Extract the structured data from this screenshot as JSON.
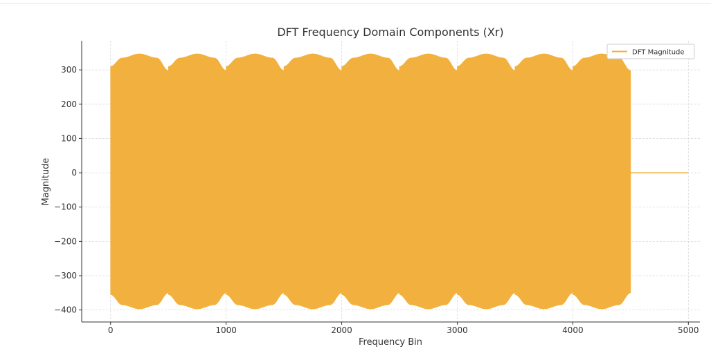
{
  "chart_data": {
    "type": "area",
    "title": "DFT Frequency Domain Components (Xr)",
    "xlabel": "Frequency Bin",
    "ylabel": "Magnitude",
    "xlim": [
      -250,
      5100
    ],
    "ylim": [
      -435,
      385
    ],
    "xticks": [
      0,
      1000,
      2000,
      3000,
      4000,
      5000
    ],
    "yticks": [
      300,
      200,
      100,
      0,
      -100,
      -200,
      -300,
      -400
    ],
    "ytick_labels": [
      "300",
      "200",
      "100",
      "0",
      "−100",
      "−200",
      "−300",
      "−400"
    ],
    "grid": true,
    "legend": {
      "position": "top-right",
      "entries": [
        "DFT Magnitude"
      ]
    },
    "series": [
      {
        "name": "DFT Magnitude",
        "color": "#f2b13e",
        "segment_length": 500,
        "segments": [
          {
            "start": 0,
            "end": 500
          },
          {
            "start": 500,
            "end": 1000
          },
          {
            "start": 1000,
            "end": 1500
          },
          {
            "start": 1500,
            "end": 2000
          },
          {
            "start": 2000,
            "end": 2500
          },
          {
            "start": 2500,
            "end": 3000
          },
          {
            "start": 3000,
            "end": 3500
          },
          {
            "start": 3500,
            "end": 4000
          },
          {
            "start": 4000,
            "end": 4500
          }
        ],
        "upper_envelope_x": [
          0,
          100,
          250,
          400,
          500
        ],
        "upper_envelope_y": [
          310,
          335,
          347,
          335,
          298
        ],
        "lower_envelope_x": [
          0,
          100,
          250,
          400,
          500
        ],
        "lower_envelope_y": [
          -355,
          -385,
          -397,
          -385,
          -350
        ],
        "zero_after": 4500,
        "zero_until": 5000
      }
    ]
  }
}
